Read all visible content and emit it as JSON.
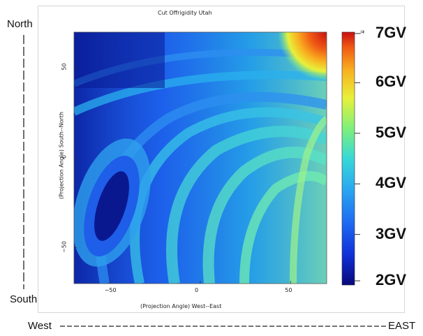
{
  "chart_data": {
    "type": "heatmap",
    "title": "Cut Offrigidity Utah",
    "xlabel": "(Projection Angle) West--East",
    "ylabel": "(Projection Angle) South--North",
    "xlim": [
      -70,
      70
    ],
    "ylim": [
      -70,
      70
    ],
    "xticks": [
      -50,
      0,
      50
    ],
    "yticks": [
      -50,
      0,
      50
    ],
    "xtick_labels": [
      "−50",
      "0",
      "50"
    ],
    "ytick_labels": [
      "−50",
      "0",
      "50"
    ],
    "colorbar": {
      "min": 2,
      "max": 7,
      "unit": "GV",
      "labels": [
        "7GV",
        "6GV",
        "5GV",
        "4GV",
        "3GV",
        "2GV"
      ],
      "label_values": [
        7,
        6,
        5,
        4,
        3,
        2
      ],
      "top_tick_text": "ft",
      "colors": [
        "#08087a",
        "#1030d8",
        "#1f6cf2",
        "#2aa8f0",
        "#38d8d8",
        "#7ff07a",
        "#e8f03a",
        "#f8b020",
        "#f05a14",
        "#c81010"
      ]
    },
    "legend": "right"
  },
  "directions": {
    "north": "North",
    "south": "South",
    "west": "West",
    "east": "EAST"
  }
}
